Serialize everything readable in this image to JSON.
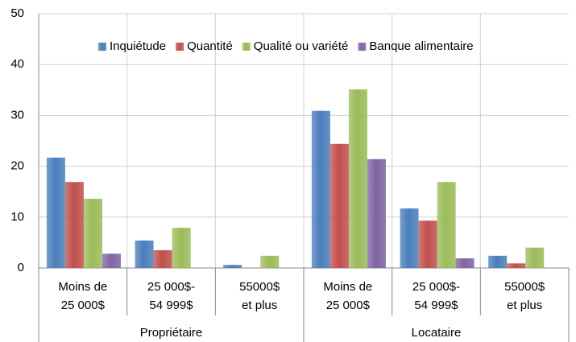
{
  "chart_data": {
    "type": "bar",
    "categories": [
      [
        "Moins de",
        "25 000$"
      ],
      [
        "25 000$-",
        "54 999$"
      ],
      [
        "55000$",
        "et plus"
      ],
      [
        "Moins de",
        "25 000$"
      ],
      [
        "25 000$-",
        "54 999$"
      ],
      [
        "55000$",
        "et plus"
      ]
    ],
    "category_groups": [
      "Propriétaire",
      "Locataire"
    ],
    "series": [
      {
        "name": "Inquiétude",
        "color": "#4a7ebb",
        "values": [
          21.7,
          5.4,
          0.6,
          30.9,
          11.7,
          2.4
        ]
      },
      {
        "name": "Quantité",
        "color": "#c0504d",
        "values": [
          16.9,
          3.5,
          0,
          24.4,
          9.3,
          0.9
        ]
      },
      {
        "name": "Qualité ou variété",
        "color": "#9bbb59",
        "values": [
          13.6,
          7.9,
          2.4,
          35.1,
          16.9,
          4.0
        ]
      },
      {
        "name": "Banque alimentaire",
        "color": "#8064a2",
        "values": [
          2.8,
          0,
          0,
          21.4,
          1.9,
          0
        ]
      }
    ],
    "ylim": [
      0,
      50
    ],
    "yticks": [
      0,
      10,
      20,
      30,
      40,
      50
    ],
    "grid": true,
    "legend": "top"
  }
}
